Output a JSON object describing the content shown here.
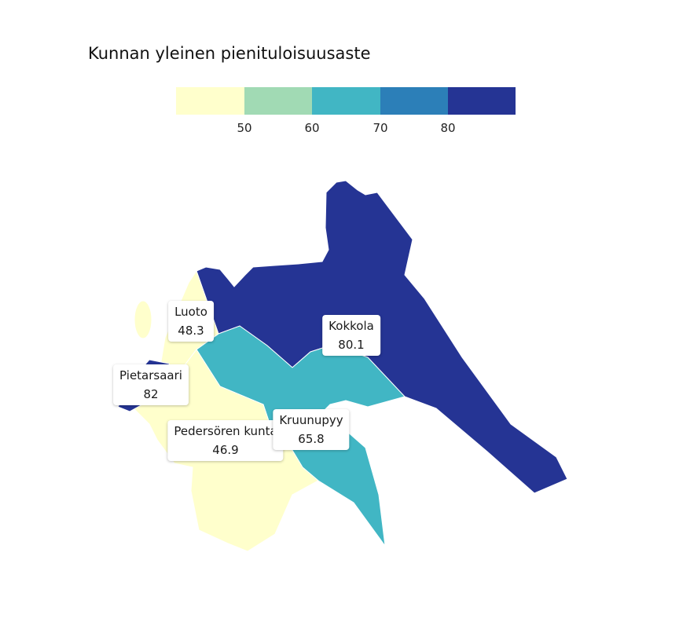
{
  "title": "Kunnan yleinen pienituloisuusaste",
  "legend": {
    "bins": [
      {
        "color": "#ffffcc"
      },
      {
        "color": "#a1dab4"
      },
      {
        "color": "#41b6c4"
      },
      {
        "color": "#2c7fb8"
      },
      {
        "color": "#253494"
      }
    ],
    "ticks": [
      "50",
      "60",
      "70",
      "80"
    ]
  },
  "regions": [
    {
      "name": "Luoto",
      "value": "48.3",
      "color": "#ffffcc"
    },
    {
      "name": "Kokkola",
      "value": "80.1",
      "color": "#253494"
    },
    {
      "name": "Pietarsaari",
      "value": "82",
      "color": "#253494"
    },
    {
      "name": "Pedersören kunta",
      "value": "46.9",
      "color": "#ffffcc"
    },
    {
      "name": "Kruunupyy",
      "value": "65.8",
      "color": "#41b6c4"
    }
  ]
}
